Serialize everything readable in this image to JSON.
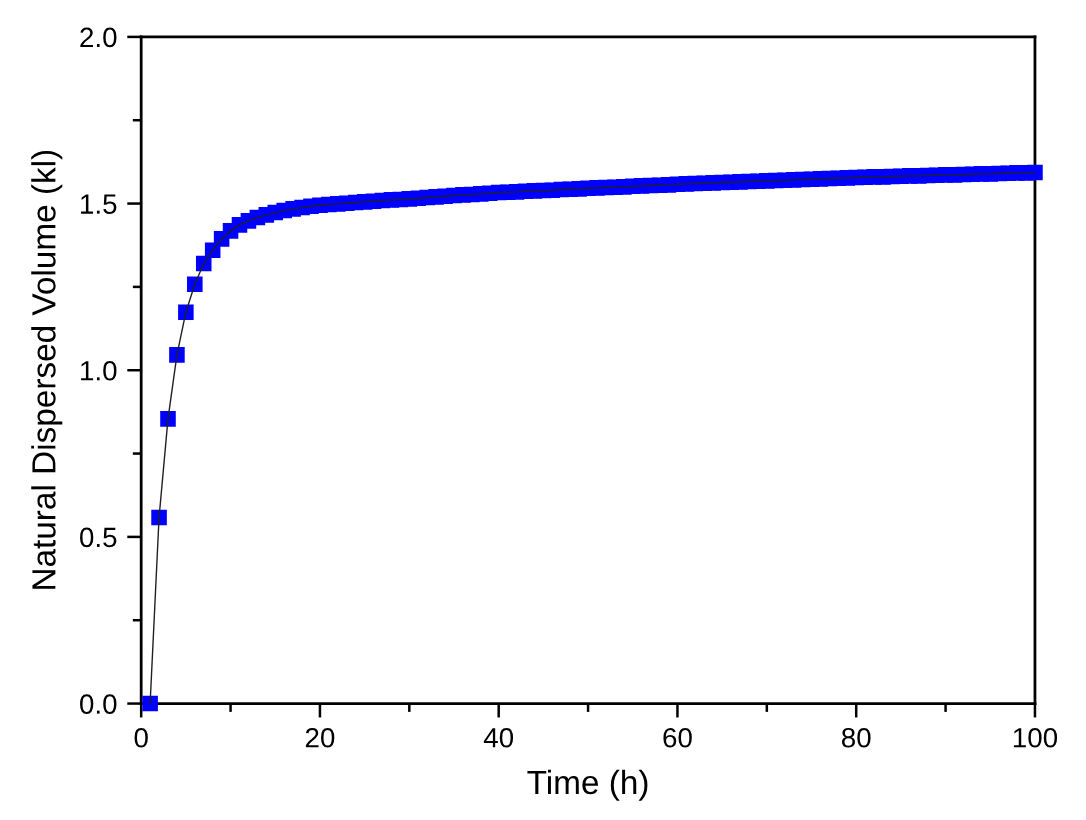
{
  "chart_data": {
    "type": "line",
    "xlabel": "Time (h)",
    "ylabel": "Natural Dispersed Volume (kl)",
    "x": [
      1,
      2,
      3,
      4,
      5,
      6,
      7,
      8,
      9,
      10,
      11,
      12,
      13,
      14,
      15,
      16,
      17,
      18,
      19,
      20,
      21,
      22,
      23,
      24,
      25,
      26,
      27,
      28,
      29,
      30,
      31,
      32,
      33,
      34,
      35,
      36,
      37,
      38,
      39,
      40,
      41,
      42,
      43,
      44,
      45,
      46,
      47,
      48,
      49,
      50,
      51,
      52,
      53,
      54,
      55,
      56,
      57,
      58,
      59,
      60,
      61,
      62,
      63,
      64,
      65,
      66,
      67,
      68,
      69,
      70,
      71,
      72,
      73,
      74,
      75,
      76,
      77,
      78,
      79,
      80,
      81,
      82,
      83,
      84,
      85,
      86,
      87,
      88,
      89,
      90,
      91,
      92,
      93,
      94,
      95,
      96,
      97,
      98,
      99,
      100
    ],
    "series": [
      {
        "color": "#0000ff",
        "values": [
          0,
          0.558,
          0.854,
          1.046,
          1.174,
          1.258,
          1.32,
          1.36,
          1.394,
          1.418,
          1.436,
          1.448,
          1.458,
          1.466,
          1.473,
          1.479,
          1.484,
          1.488,
          1.492,
          1.495,
          1.497,
          1.499,
          1.501,
          1.503,
          1.505,
          1.507,
          1.509,
          1.511,
          1.512,
          1.514,
          1.516,
          1.518,
          1.52,
          1.522,
          1.524,
          1.526,
          1.527,
          1.529,
          1.531,
          1.533,
          1.534,
          1.535,
          1.537,
          1.538,
          1.539,
          1.54,
          1.542,
          1.543,
          1.544,
          1.546,
          1.547,
          1.548,
          1.549,
          1.55,
          1.552,
          1.553,
          1.554,
          1.555,
          1.556,
          1.558,
          1.559,
          1.56,
          1.561,
          1.562,
          1.563,
          1.564,
          1.565,
          1.566,
          1.567,
          1.568,
          1.569,
          1.57,
          1.571,
          1.572,
          1.573,
          1.574,
          1.575,
          1.576,
          1.577,
          1.578,
          1.579,
          1.58,
          1.58,
          1.581,
          1.582,
          1.583,
          1.583,
          1.584,
          1.585,
          1.586,
          1.586,
          1.587,
          1.588,
          1.589,
          1.589,
          1.59,
          1.591,
          1.592,
          1.592,
          1.593
        ]
      }
    ],
    "xlim": [
      0,
      100
    ],
    "ylim": [
      0,
      2
    ],
    "xticks": [
      0,
      {
        "value": 10,
        "label": null
      },
      20,
      {
        "value": 30,
        "label": null
      },
      40,
      {
        "value": 50,
        "label": null
      },
      60,
      {
        "value": 70,
        "label": null
      },
      80,
      {
        "value": 90,
        "label": null
      },
      100
    ],
    "yticks": [
      {
        "value": 0,
        "label": "0.0"
      },
      {
        "value": 0.25,
        "label": null
      },
      {
        "value": 0.5,
        "label": "0.5"
      },
      {
        "value": 0.75,
        "label": null
      },
      {
        "value": 1,
        "label": "1.0"
      },
      {
        "value": 1.25,
        "label": null
      },
      {
        "value": 1.5,
        "label": "1.5"
      },
      {
        "value": 1.75,
        "label": null
      },
      {
        "value": 2,
        "label": "2.0"
      }
    ],
    "grid": false,
    "marker": "square",
    "line_style": "solid"
  }
}
